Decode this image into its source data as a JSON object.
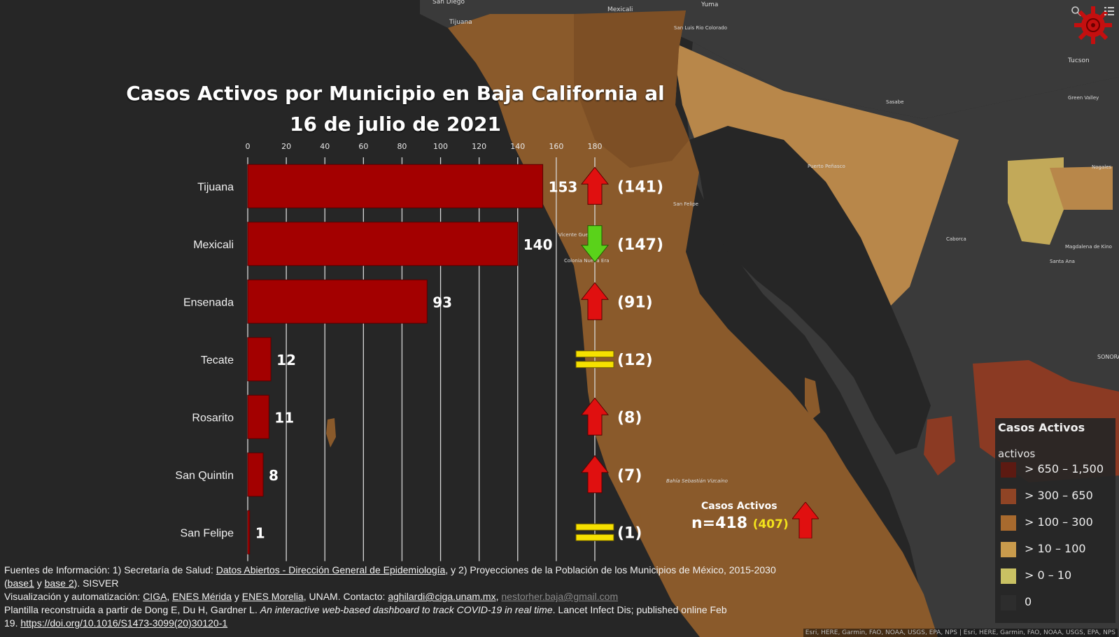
{
  "chart_data": {
    "type": "bar",
    "orientation": "horizontal",
    "title_line1": "Casos Activos por Municipio en Baja California al",
    "title_line2": "16 de julio de 2021",
    "xlim": [
      0,
      180
    ],
    "xticks": [
      0,
      20,
      40,
      60,
      80,
      100,
      120,
      140,
      160,
      180
    ],
    "categories": [
      "Tijuana",
      "Mexicali",
      "Ensenada",
      "Tecate",
      "Rosarito",
      "San Quintin",
      "San Felipe"
    ],
    "values": [
      153,
      140,
      93,
      12,
      11,
      8,
      1
    ],
    "previous_labels": [
      "(141)",
      "(147)",
      "(91)",
      "(12)",
      "(8)",
      "(7)",
      "(1)"
    ],
    "trend": [
      "up",
      "down",
      "up",
      "equal",
      "up",
      "up",
      "equal"
    ],
    "bar_color": "#a30000",
    "grid": true
  },
  "map": {
    "labels": [
      "San Diego",
      "Mexicali",
      "Yuma",
      "San Luis Rio Colorado",
      "Tijuana",
      "Tucson",
      "Sasabe",
      "Green Valley",
      "Nogales",
      "Puerto Peñasco",
      "San Felipe",
      "Vicente Guerrero",
      "Colonia Nueva Era",
      "Caborca",
      "Magdalena de Kino",
      "Santa Ana",
      "SONORA",
      "Bahía Sebastián Vizcaíno"
    ],
    "colors": {
      "ocean": "#262626",
      "land_dark": "#3a3a3a",
      "bc": "#8a5a2b",
      "sonora_light": "#9d6b35",
      "tan": "#b8874a",
      "yellow": "#c2a959",
      "red": "#8b3a23"
    }
  },
  "total": {
    "label": "Casos Activos",
    "value": "n=418",
    "previous": "(407)",
    "trend": "up"
  },
  "legend": {
    "title": "Casos Activos",
    "subtitle": "activos",
    "items": [
      {
        "label": "> 650 – 1,500",
        "color": "#5c1a12"
      },
      {
        "label": "> 300 – 650",
        "color": "#8f4425"
      },
      {
        "label": "> 100 – 300",
        "color": "#a86a2e"
      },
      {
        "label": "> 10 – 100",
        "color": "#c99b4c"
      },
      {
        "label": "> 0 – 10",
        "color": "#c9c163"
      },
      {
        "label": "0",
        "color": "#2d2d2d"
      }
    ]
  },
  "footer": {
    "l1_a": "Fuentes de Información: 1) Secretaría de Salud: ",
    "l1_link": "Datos Abiertos - Dirección General de Epidemiología",
    "l1_b": ", y 2) Proyecciones de la Población de los Municipios de México, 2015-2030",
    "l2_a": "(",
    "l2_link1": "base1",
    "l2_b": " y ",
    "l2_link2": "base 2",
    "l2_c": "). SISVER",
    "l3_a": " Visualización y automatización: ",
    "l3_link1": "CIGA",
    "l3_b": ", ",
    "l3_link2": "ENES Mérida",
    "l3_c": " y ",
    "l3_link3": "ENES Morelia",
    "l3_d": ", UNAM. Contacto: ",
    "l3_link4": "aghilardi@ciga.unam.mx",
    "l3_e": ", ",
    "l3_link5": "nestorher.baja@gmail.com",
    "l4_a": " Plantilla reconstruida a partir de Dong E, Du H, Gardner L. ",
    "l4_em": "An interactive web-based dashboard to track COVID-19 in real time",
    "l4_b": ". Lancet Infect Dis; published online Feb",
    "l5_a": "19. ",
    "l5_link": "https://doi.org/10.1016/S1473-3099(20)30120-1"
  },
  "attribution": "Esri, HERE, Garmin, FAO, NOAA, USGS, EPA, NPS | Esri, HERE, Garmin, FAO, NOAA, USGS, EPA, NPS"
}
